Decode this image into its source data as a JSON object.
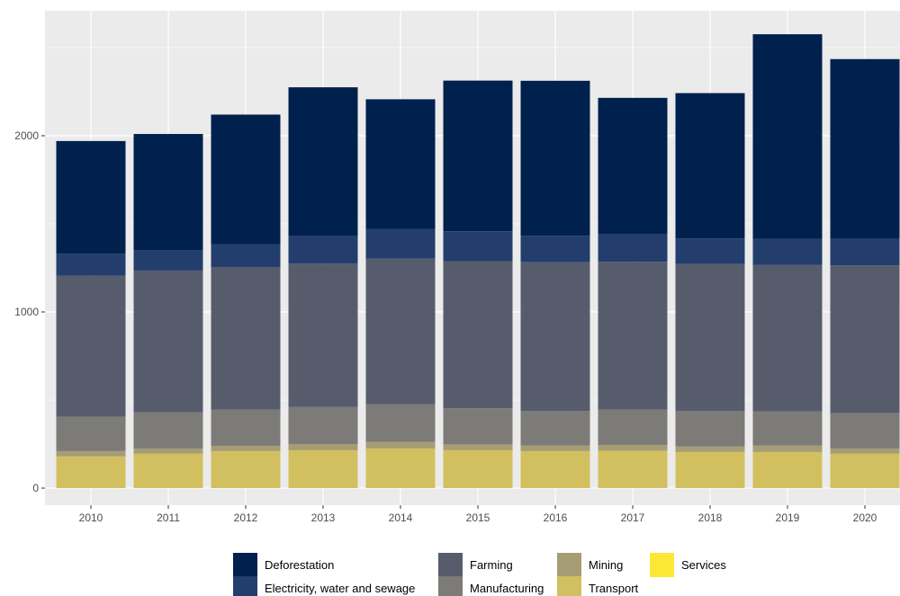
{
  "chart_data": {
    "type": "bar",
    "stacked": true,
    "categories": [
      "2010",
      "2011",
      "2012",
      "2013",
      "2014",
      "2015",
      "2016",
      "2017",
      "2018",
      "2019",
      "2020"
    ],
    "series": [
      {
        "name": "Transport",
        "color": "#d2c060",
        "values": [
          180,
          195,
          210,
          215,
          225,
          215,
          210,
          212,
          205,
          205,
          195
        ]
      },
      {
        "name": "Services",
        "color": "#fde737",
        "values": [
          0,
          0,
          0,
          0,
          0,
          0,
          0,
          0,
          0,
          0,
          0
        ]
      },
      {
        "name": "Mining",
        "color": "#a69d75",
        "values": [
          30,
          30,
          30,
          35,
          37,
          33,
          32,
          33,
          32,
          36,
          30
        ]
      },
      {
        "name": "Manufacturing",
        "color": "#7c7b78",
        "values": [
          195,
          205,
          205,
          210,
          215,
          205,
          195,
          200,
          200,
          195,
          200
        ]
      },
      {
        "name": "Farming",
        "color": "#575c6d",
        "values": [
          800,
          805,
          810,
          815,
          825,
          835,
          845,
          840,
          835,
          830,
          840
        ]
      },
      {
        "name": "Electricity, water and sewage",
        "color": "#233e6c",
        "values": [
          125,
          115,
          130,
          155,
          170,
          170,
          150,
          155,
          145,
          150,
          150
        ]
      },
      {
        "name": "Deforestation",
        "color": "#00204d",
        "values": [
          640,
          660,
          735,
          845,
          735,
          855,
          880,
          775,
          825,
          1160,
          1020
        ]
      }
    ],
    "title": "",
    "xlabel": "",
    "ylabel": "",
    "ylim": [
      0,
      2620
    ],
    "yticks": [
      0,
      1000,
      2000
    ],
    "ytick_labels": [
      "0",
      "1000",
      "2000"
    ],
    "grid": true,
    "legend_position": "bottom",
    "legend": {
      "columns": [
        [
          "Deforestation",
          "Electricity, water and sewage"
        ],
        [
          "Farming",
          "Manufacturing"
        ],
        [
          "Mining",
          "Transport"
        ],
        [
          "Services"
        ]
      ]
    },
    "panel_background": "#ebebeb",
    "grid_color": "#ffffff"
  }
}
